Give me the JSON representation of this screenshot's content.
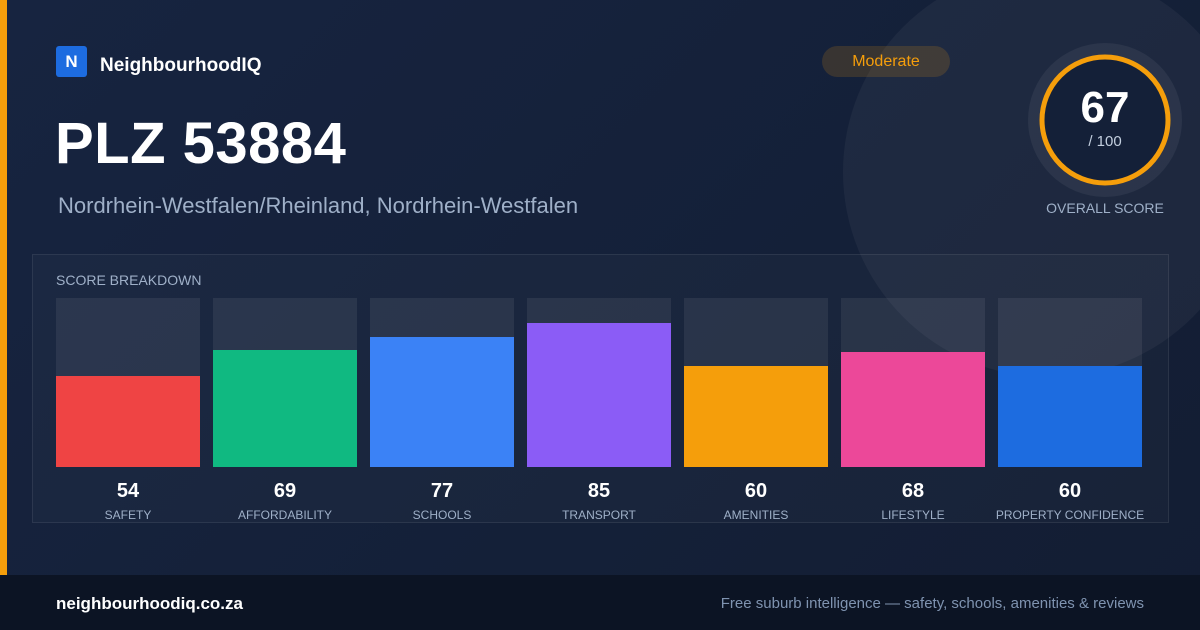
{
  "brand": {
    "logo_letter": "N",
    "name": "NeighbourhoodIQ"
  },
  "location": {
    "title": "PLZ 53884",
    "subtitle": "Nordrhein-Westfalen/Rheinland, Nordrhein-Westfalen"
  },
  "rating_badge": "Moderate",
  "overall": {
    "score": 67,
    "max_label": "/ 100",
    "label": "OVERALL SCORE",
    "ring_color": "#f59e0b"
  },
  "breakdown": {
    "title": "SCORE BREAKDOWN",
    "items": [
      {
        "label": "SAFETY",
        "value": 54,
        "color": "#ef4444"
      },
      {
        "label": "AFFORDABILITY",
        "value": 69,
        "color": "#10b981"
      },
      {
        "label": "SCHOOLS",
        "value": 77,
        "color": "#3b82f6"
      },
      {
        "label": "TRANSPORT",
        "value": 85,
        "color": "#8b5cf6"
      },
      {
        "label": "AMENITIES",
        "value": 60,
        "color": "#f59e0b"
      },
      {
        "label": "LIFESTYLE",
        "value": 68,
        "color": "#ec4899"
      },
      {
        "label": "PROPERTY CONFIDENCE",
        "value": 60,
        "color": "#1d6ce0"
      }
    ]
  },
  "footer": {
    "domain": "neighbourhoodiq.co.za",
    "tagline": "Free suburb intelligence — safety, schools, amenities & reviews"
  },
  "colors": {
    "accent": "#f59e0b",
    "background": "#172440"
  }
}
